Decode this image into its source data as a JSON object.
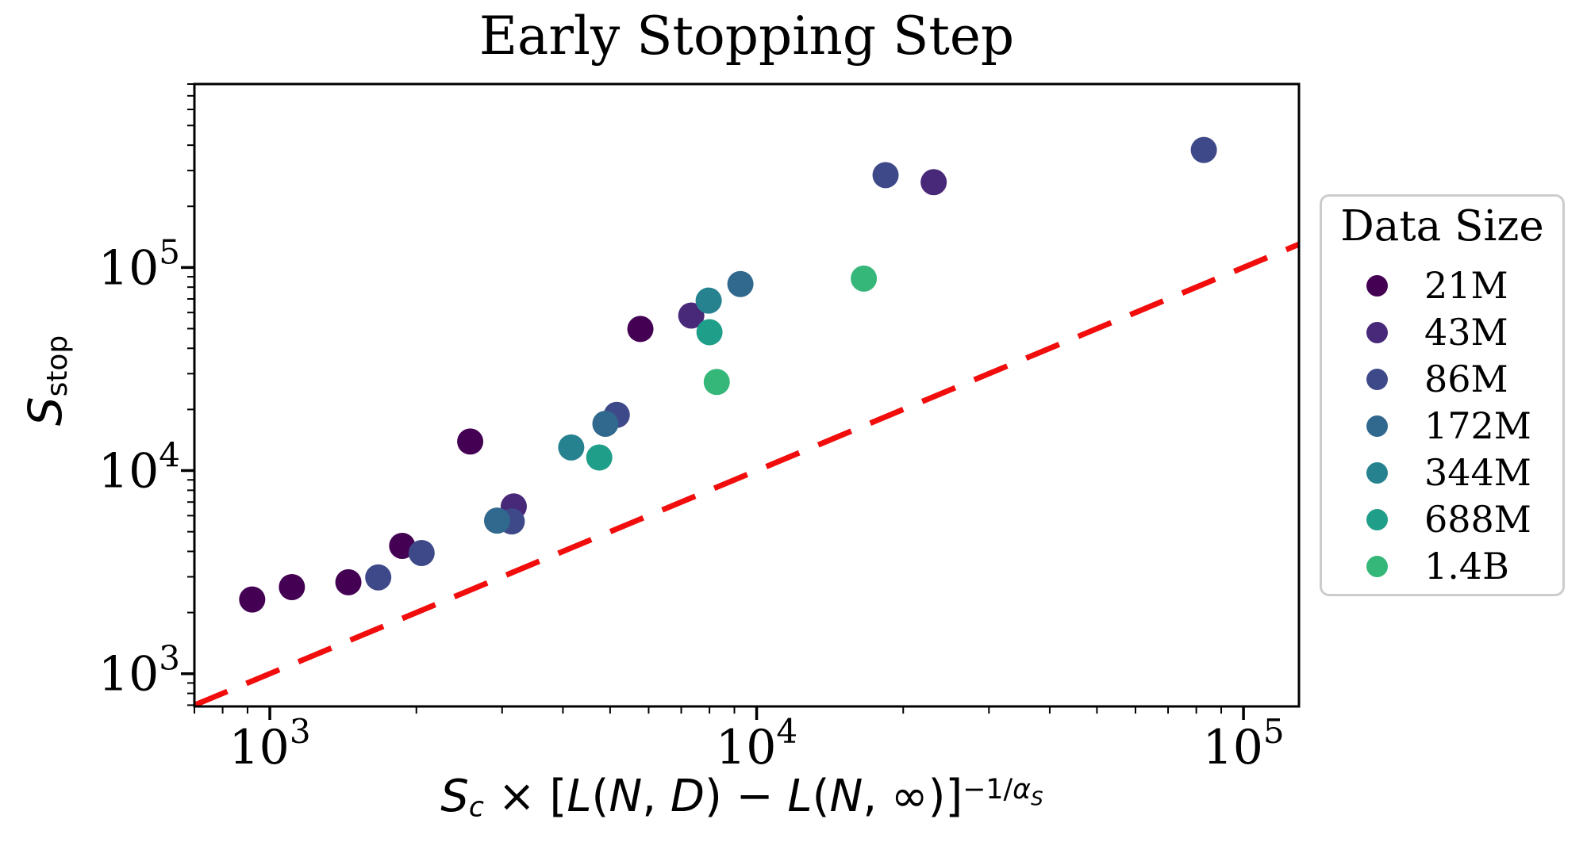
{
  "figure": {
    "background": "#ffffff"
  },
  "chart_data": {
    "type": "scatter",
    "title": "Early Stopping Step",
    "xscale": "log",
    "yscale": "log",
    "xlim": [
      700,
      130000
    ],
    "ylim": [
      690,
      800000
    ],
    "grid": false,
    "xticks": [
      1000,
      10000,
      100000
    ],
    "yticks": [
      1000,
      10000,
      100000
    ],
    "xtick_labels": [
      "10³",
      "10⁴",
      "10⁵"
    ],
    "ytick_labels": [
      "10³",
      "10⁴",
      "10⁵"
    ],
    "xlabel": "S_c × [L(N, D) − L(N, ∞)]^(−1/α_S)",
    "ylabel": "S_stop",
    "xlabel_segments": [
      {
        "text": "S",
        "italic": true
      },
      {
        "text": "c",
        "italic": true,
        "script": "sub"
      },
      {
        "text": " × [",
        "italic": false
      },
      {
        "text": "L",
        "italic": true
      },
      {
        "text": "(",
        "italic": false
      },
      {
        "text": "N",
        "italic": true
      },
      {
        "text": ", ",
        "italic": false
      },
      {
        "text": "D",
        "italic": true
      },
      {
        "text": ") − ",
        "italic": false
      },
      {
        "text": "L",
        "italic": true
      },
      {
        "text": "(",
        "italic": false
      },
      {
        "text": "N",
        "italic": true
      },
      {
        "text": ", ∞)]",
        "italic": false
      },
      {
        "text": "−1/",
        "italic": false,
        "script": "sup"
      },
      {
        "text": "α",
        "italic": true,
        "script": "sup"
      },
      {
        "text": "S",
        "italic": true,
        "script": "supsub"
      }
    ],
    "ylabel_segments": [
      {
        "text": "S",
        "italic": true
      },
      {
        "text": "stop",
        "italic": false,
        "script": "sub"
      }
    ],
    "legend": {
      "title": "Data Size",
      "position": "right-outside"
    },
    "series": [
      {
        "name": "21M",
        "color": "#440154",
        "points": [
          [
            920,
            2320
          ],
          [
            1110,
            2670
          ],
          [
            1450,
            2820
          ],
          [
            1870,
            4260
          ],
          [
            2580,
            13900
          ],
          [
            5770,
            49800
          ]
        ]
      },
      {
        "name": "43M",
        "color": "#482878",
        "points": [
          [
            3170,
            6660
          ],
          [
            7340,
            58000
          ],
          [
            23100,
            263000
          ]
        ]
      },
      {
        "name": "86M",
        "color": "#3e4989",
        "points": [
          [
            1670,
            2980
          ],
          [
            2050,
            3930
          ],
          [
            3140,
            5620
          ],
          [
            5160,
            18800
          ],
          [
            18400,
            285000
          ],
          [
            82900,
            379000
          ]
        ]
      },
      {
        "name": "172M",
        "color": "#31688e",
        "points": [
          [
            2930,
            5670
          ],
          [
            4890,
            17000
          ],
          [
            9260,
            82900
          ]
        ]
      },
      {
        "name": "344M",
        "color": "#26828e",
        "points": [
          [
            4160,
            13000
          ],
          [
            7970,
            68700
          ]
        ]
      },
      {
        "name": "688M",
        "color": "#1f9e89",
        "points": [
          [
            4750,
            11600
          ],
          [
            8000,
            48000
          ]
        ]
      },
      {
        "name": "1.4B",
        "color": "#35b779",
        "points": [
          [
            8280,
            27300
          ],
          [
            16600,
            88200
          ]
        ]
      }
    ],
    "reference_line": {
      "style": "dashed",
      "color": "#f20d0d",
      "from": [
        700,
        700
      ],
      "to": [
        130000,
        130000
      ],
      "relation": "y = x"
    }
  }
}
